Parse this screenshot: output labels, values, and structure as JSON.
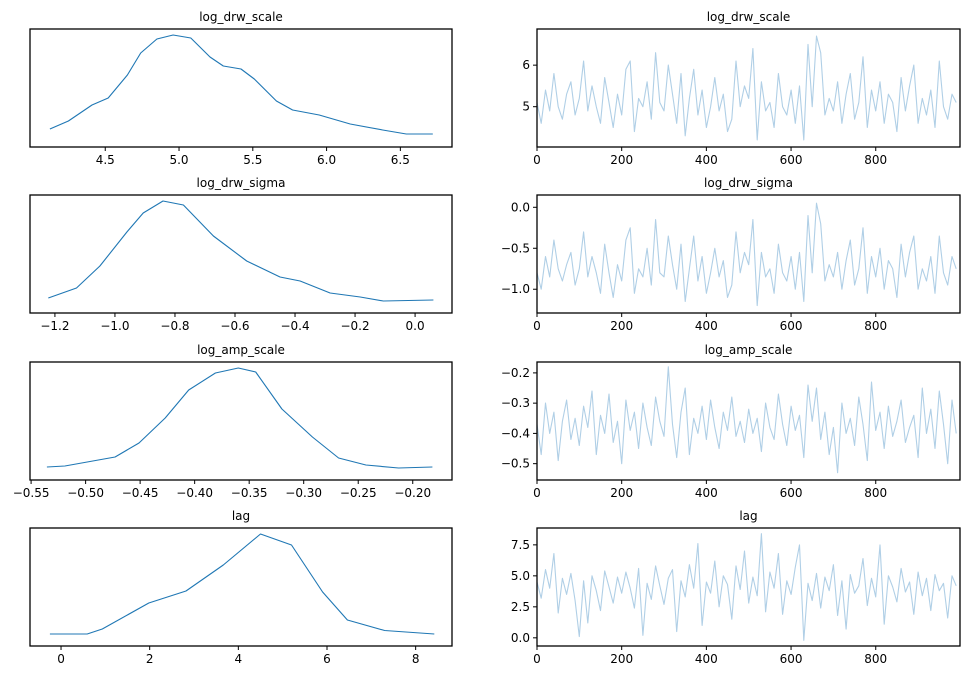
{
  "colors": {
    "kde": "#1f77b4",
    "trace": "#b0cfe6",
    "axes": "#000000"
  },
  "chart_data": [
    {
      "type": "line",
      "title": "log_drw_scale",
      "kde": {
        "xlim": [
          3.99,
          6.85
        ],
        "xticks": [
          4.5,
          5.0,
          5.5,
          6.0,
          6.5
        ],
        "xtick_labels": [
          "4.5",
          "5.0",
          "5.5",
          "6.0",
          "6.5"
        ],
        "x": [
          4.125,
          4.25,
          4.41,
          4.52,
          4.65,
          4.74,
          4.85,
          4.96,
          5.08,
          5.21,
          5.3,
          5.42,
          5.51,
          5.66,
          5.77,
          5.95,
          6.16,
          6.38,
          6.54,
          6.72
        ],
        "density_relative": [
          0.06,
          0.14,
          0.3,
          0.37,
          0.6,
          0.82,
          0.96,
          1.0,
          0.97,
          0.78,
          0.69,
          0.66,
          0.56,
          0.34,
          0.25,
          0.2,
          0.11,
          0.05,
          0.01,
          0.01
        ]
      },
      "trace": {
        "xlim": [
          0,
          999
        ],
        "ylim": [
          4.03,
          6.87
        ],
        "xticks": [
          0,
          200,
          400,
          600,
          800
        ],
        "xtick_labels": [
          "0",
          "200",
          "400",
          "600",
          "800"
        ],
        "yticks": [
          5,
          6
        ],
        "ytick_labels": [
          "5",
          "6"
        ],
        "draw_step": 10,
        "values": [
          5.1,
          4.6,
          5.4,
          4.9,
          5.8,
          5.0,
          4.7,
          5.3,
          5.6,
          4.8,
          5.2,
          6.1,
          4.9,
          5.5,
          5.0,
          4.6,
          5.7,
          5.1,
          4.5,
          5.3,
          4.8,
          5.9,
          6.1,
          4.4,
          5.2,
          5.0,
          5.6,
          4.7,
          6.3,
          5.1,
          4.9,
          6.0,
          5.3,
          4.6,
          5.8,
          4.3,
          5.2,
          5.9,
          4.8,
          5.4,
          4.5,
          5.0,
          5.7,
          4.9,
          5.3,
          4.4,
          4.7,
          6.1,
          5.0,
          5.5,
          5.2,
          6.4,
          4.2,
          5.6,
          4.9,
          5.1,
          4.5,
          5.8,
          5.0,
          4.8,
          5.4,
          4.6,
          5.5,
          4.2,
          6.5,
          5.0,
          6.7,
          6.3,
          4.8,
          5.2,
          4.9,
          5.6,
          4.6,
          5.3,
          5.8,
          4.7,
          5.1,
          6.2,
          4.5,
          5.4,
          4.9,
          5.6,
          4.6,
          5.3,
          5.1,
          4.4,
          5.7,
          4.9,
          5.5,
          6.0,
          4.6,
          5.2,
          4.8,
          5.4,
          4.5,
          6.1,
          5.0,
          4.7,
          5.3,
          5.1
        ]
      }
    },
    {
      "type": "line",
      "title": "log_drw_sigma",
      "kde": {
        "xlim": [
          -1.283,
          0.123
        ],
        "xticks": [
          -1.2,
          -1.0,
          -0.8,
          -0.6,
          -0.4,
          -0.2,
          0.0
        ],
        "xtick_labels": [
          "−1.2",
          "−1.0",
          "−0.8",
          "−0.6",
          "−0.4",
          "−0.2",
          "0.0"
        ],
        "x": [
          -1.222,
          -1.128,
          -1.05,
          -0.96,
          -0.906,
          -0.84,
          -0.772,
          -0.672,
          -0.561,
          -0.45,
          -0.383,
          -0.283,
          -0.183,
          -0.106,
          0.061
        ],
        "density_relative": [
          0.03,
          0.13,
          0.35,
          0.69,
          0.88,
          1.0,
          0.96,
          0.65,
          0.4,
          0.24,
          0.2,
          0.08,
          0.04,
          0.0,
          0.01
        ]
      },
      "trace": {
        "xlim": [
          0,
          999
        ],
        "ylim": [
          -1.29,
          0.15
        ],
        "xticks": [
          0,
          200,
          400,
          600,
          800
        ],
        "xtick_labels": [
          "0",
          "200",
          "400",
          "600",
          "800"
        ],
        "yticks": [
          -1.0,
          -0.5,
          0.0
        ],
        "ytick_labels": [
          "−1.0",
          "−0.5",
          "0.0"
        ],
        "draw_step": 10,
        "values": [
          -0.8,
          -1.0,
          -0.6,
          -0.85,
          -0.4,
          -0.75,
          -0.9,
          -0.7,
          -0.55,
          -0.95,
          -0.75,
          -0.3,
          -0.85,
          -0.6,
          -0.8,
          -1.05,
          -0.45,
          -0.8,
          -1.1,
          -0.7,
          -0.9,
          -0.4,
          -0.25,
          -1.05,
          -0.75,
          -0.85,
          -0.5,
          -0.95,
          -0.15,
          -0.8,
          -0.85,
          -0.35,
          -0.7,
          -1.0,
          -0.45,
          -1.15,
          -0.75,
          -0.35,
          -0.9,
          -0.6,
          -1.05,
          -0.8,
          -0.5,
          -0.85,
          -0.65,
          -1.1,
          -0.95,
          -0.3,
          -0.8,
          -0.55,
          -0.7,
          -0.15,
          -1.2,
          -0.55,
          -0.85,
          -0.75,
          -1.05,
          -0.45,
          -0.8,
          -0.9,
          -0.6,
          -1.0,
          -0.55,
          -1.15,
          -0.1,
          -0.8,
          0.05,
          -0.2,
          -0.9,
          -0.7,
          -0.85,
          -0.55,
          -1.0,
          -0.65,
          -0.4,
          -0.95,
          -0.75,
          -0.25,
          -1.05,
          -0.6,
          -0.85,
          -0.5,
          -1.0,
          -0.65,
          -0.75,
          -1.1,
          -0.45,
          -0.85,
          -0.55,
          -0.35,
          -1.0,
          -0.75,
          -0.9,
          -0.6,
          -1.05,
          -0.35,
          -0.8,
          -0.95,
          -0.6,
          -0.75
        ]
      }
    },
    {
      "type": "line",
      "title": "log_amp_scale",
      "kde": {
        "xlim": [
          -0.551,
          -0.164
        ],
        "xticks": [
          -0.55,
          -0.5,
          -0.45,
          -0.4,
          -0.35,
          -0.3,
          -0.25,
          -0.2
        ],
        "xtick_labels": [
          "−0.55",
          "−0.50",
          "−0.45",
          "−0.40",
          "−0.35",
          "−0.30",
          "−0.25",
          "−0.20"
        ],
        "x": [
          -0.5355,
          -0.519,
          -0.473,
          -0.451,
          -0.427,
          -0.4055,
          -0.381,
          -0.36,
          -0.344,
          -0.32,
          -0.292,
          -0.268,
          -0.243,
          -0.213,
          -0.182
        ],
        "density_relative": [
          0.01,
          0.02,
          0.11,
          0.25,
          0.5,
          0.78,
          0.95,
          1.0,
          0.96,
          0.59,
          0.31,
          0.1,
          0.03,
          0.0,
          0.01
        ]
      },
      "trace": {
        "xlim": [
          0,
          999
        ],
        "ylim": [
          -0.554,
          -0.164
        ],
        "xticks": [
          0,
          200,
          400,
          600,
          800
        ],
        "xtick_labels": [
          "0",
          "200",
          "400",
          "600",
          "800"
        ],
        "yticks": [
          -0.5,
          -0.4,
          -0.3,
          -0.2
        ],
        "ytick_labels": [
          "−0.5",
          "−0.4",
          "−0.3",
          "−0.2"
        ],
        "draw_step": 10,
        "values": [
          -0.37,
          -0.47,
          -0.3,
          -0.4,
          -0.33,
          -0.49,
          -0.36,
          -0.29,
          -0.42,
          -0.35,
          -0.44,
          -0.31,
          -0.38,
          -0.26,
          -0.47,
          -0.34,
          -0.4,
          -0.27,
          -0.43,
          -0.36,
          -0.5,
          -0.29,
          -0.39,
          -0.33,
          -0.45,
          -0.3,
          -0.38,
          -0.44,
          -0.28,
          -0.36,
          -0.41,
          -0.18,
          -0.37,
          -0.48,
          -0.33,
          -0.25,
          -0.47,
          -0.35,
          -0.4,
          -0.31,
          -0.42,
          -0.29,
          -0.38,
          -0.45,
          -0.33,
          -0.39,
          -0.28,
          -0.41,
          -0.36,
          -0.43,
          -0.32,
          -0.4,
          -0.35,
          -0.46,
          -0.3,
          -0.38,
          -0.42,
          -0.27,
          -0.37,
          -0.44,
          -0.31,
          -0.39,
          -0.34,
          -0.48,
          -0.24,
          -0.36,
          -0.25,
          -0.42,
          -0.33,
          -0.47,
          -0.38,
          -0.53,
          -0.3,
          -0.4,
          -0.35,
          -0.44,
          -0.28,
          -0.37,
          -0.49,
          -0.23,
          -0.39,
          -0.33,
          -0.45,
          -0.31,
          -0.41,
          -0.36,
          -0.29,
          -0.43,
          -0.38,
          -0.34,
          -0.48,
          -0.25,
          -0.4,
          -0.32,
          -0.45,
          -0.26,
          -0.37,
          -0.5,
          -0.29,
          -0.4
        ]
      }
    },
    {
      "type": "line",
      "title": "lag",
      "kde": {
        "xlim": [
          -0.7,
          8.82
        ],
        "xticks": [
          0,
          2,
          4,
          6,
          8
        ],
        "xtick_labels": [
          "0",
          "2",
          "4",
          "6",
          "8"
        ],
        "x": [
          -0.25,
          0.59,
          0.93,
          1.98,
          2.82,
          3.66,
          4.5,
          5.2,
          5.9,
          6.46,
          7.3,
          8.42
        ],
        "density_relative": [
          0.0,
          0.0,
          0.05,
          0.31,
          0.43,
          0.69,
          1.0,
          0.89,
          0.42,
          0.14,
          0.035,
          0.0
        ]
      },
      "trace": {
        "xlim": [
          0,
          999
        ],
        "ylim": [
          -0.66,
          8.86
        ],
        "xticks": [
          0,
          200,
          400,
          600,
          800
        ],
        "xtick_labels": [
          "0",
          "200",
          "400",
          "600",
          "800"
        ],
        "yticks": [
          0.0,
          2.5,
          5.0,
          7.5
        ],
        "ytick_labels": [
          "0.0",
          "2.5",
          "5.0",
          "7.5"
        ],
        "draw_step": 10,
        "values": [
          4.5,
          3.2,
          5.5,
          4.0,
          6.8,
          2.0,
          4.8,
          3.5,
          5.2,
          3.0,
          0.1,
          4.6,
          1.2,
          5.0,
          3.8,
          2.2,
          5.4,
          4.1,
          2.8,
          4.9,
          3.6,
          5.3,
          4.0,
          2.4,
          5.6,
          0.2,
          4.4,
          3.1,
          5.8,
          4.2,
          2.7,
          4.8,
          5.5,
          0.5,
          4.6,
          3.3,
          5.9,
          4.0,
          7.6,
          1.0,
          4.5,
          3.6,
          6.2,
          2.5,
          5.0,
          4.3,
          1.5,
          5.8,
          3.9,
          7.0,
          2.8,
          4.9,
          3.4,
          8.4,
          2.1,
          5.3,
          4.0,
          6.8,
          1.9,
          4.6,
          3.5,
          5.7,
          7.5,
          -0.2,
          4.4,
          3.0,
          5.2,
          2.4,
          4.9,
          3.8,
          5.9,
          1.8,
          4.6,
          0.7,
          5.1,
          3.6,
          4.2,
          6.4,
          2.6,
          4.8,
          3.3,
          7.5,
          1.1,
          5.0,
          4.1,
          2.9,
          5.6,
          3.7,
          4.5,
          1.9,
          5.3,
          3.4,
          4.8,
          2.2,
          5.1,
          3.8,
          4.4,
          1.6,
          5.0,
          4.2
        ]
      }
    }
  ]
}
